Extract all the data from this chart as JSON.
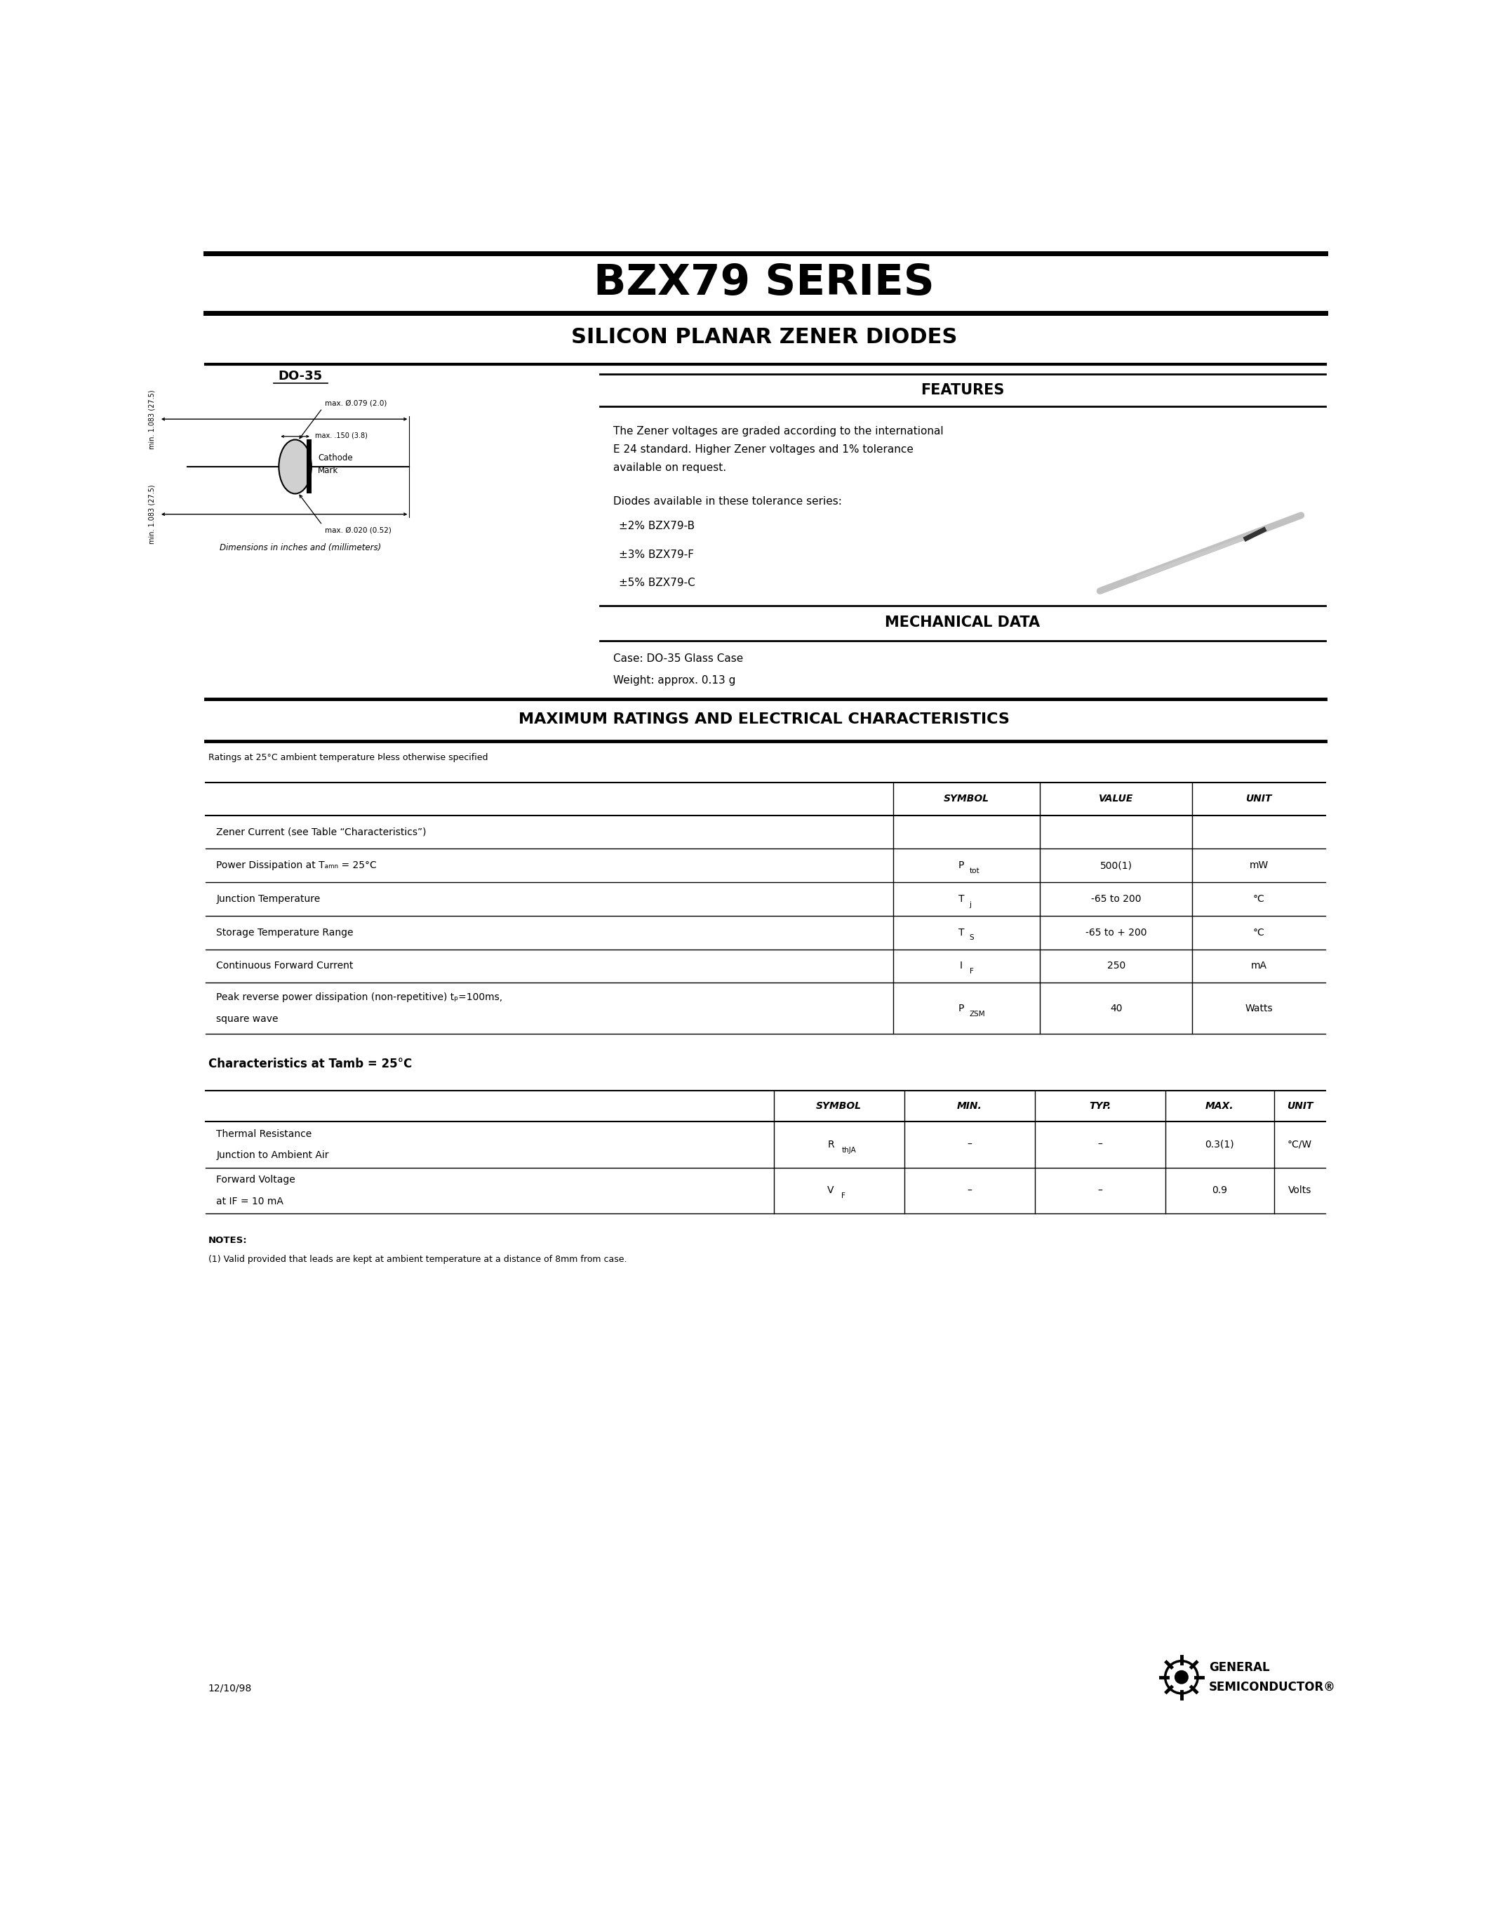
{
  "title": "BZX79 SERIES",
  "subtitle": "SILICON PLANAR ZENER DIODES",
  "bg_color": "#ffffff",
  "features_title": "FEATURES",
  "features_text1": "The Zener voltages are graded according to the international\nE 24 standard. Higher Zener voltages and 1% tolerance\navailable on request.",
  "features_text2": "Diodes available in these tolerance series:",
  "tolerance_lines": [
    "±2% BZX79-B",
    "±3% BZX79-F",
    "±5% BZX79-C"
  ],
  "mechanical_title": "MECHANICAL DATA",
  "mechanical_case": "Case: DO-35 Glass Case",
  "mechanical_weight": "Weight: approx. 0.13 g",
  "do35_label": "DO-35",
  "dim_note": "Dimensions in inches and (millimeters)",
  "max_ratings_title": "MAXIMUM RATINGS AND ELECTRICAL CHARACTERISTICS",
  "ratings_note": "Ratings at 25°C ambient temperature Þless otherwise specified",
  "table1_col_headers": [
    "SYMBOL",
    "VALUE",
    "UNIT"
  ],
  "table1_rows": [
    {
      "desc": "Zener Current (see Table “Characteristics”)",
      "desc2": "",
      "sym_main": "",
      "sym_sub": "",
      "value": "",
      "unit": ""
    },
    {
      "desc": "Power Dissipation at Tₐₘₙ = 25°C",
      "desc2": "",
      "sym_main": "P",
      "sym_sub": "tot",
      "value": "500(1)",
      "unit": "mW"
    },
    {
      "desc": "Junction Temperature",
      "desc2": "",
      "sym_main": "T",
      "sym_sub": "j",
      "value": "-65 to 200",
      "unit": "°C"
    },
    {
      "desc": "Storage Temperature Range",
      "desc2": "",
      "sym_main": "T",
      "sym_sub": "S",
      "value": "-65 to + 200",
      "unit": "°C"
    },
    {
      "desc": "Continuous Forward Current",
      "desc2": "",
      "sym_main": "I",
      "sym_sub": "F",
      "value": "250",
      "unit": "mA"
    },
    {
      "desc": "Peak reverse power dissipation (non-repetitive) tₚ=100ms,",
      "desc2": "square wave",
      "sym_main": "P",
      "sym_sub": "ZSM",
      "value": "40",
      "unit": "Watts"
    }
  ],
  "char_title": "Characteristics at Tamb = 25°C",
  "table2_col_headers": [
    "SYMBOL",
    "MIN.",
    "TYP.",
    "MAX.",
    "UNIT"
  ],
  "table2_rows": [
    {
      "desc": "Thermal Resistance",
      "desc2": "Junction to Ambient Air",
      "sym_main": "R",
      "sym_sub": "thJA",
      "min": "–",
      "typ": "–",
      "max": "0.3(1)",
      "unit": "°C/W"
    },
    {
      "desc": "Forward Voltage",
      "desc2": "at IF = 10 mA",
      "sym_main": "V",
      "sym_sub": "F",
      "min": "–",
      "typ": "–",
      "max": "0.9",
      "unit": "Volts"
    }
  ],
  "notes_title": "NOTES:",
  "notes_text": "(1) Valid provided that leads are kept at ambient temperature at a distance of 8mm from case.",
  "date": "12/10/98"
}
